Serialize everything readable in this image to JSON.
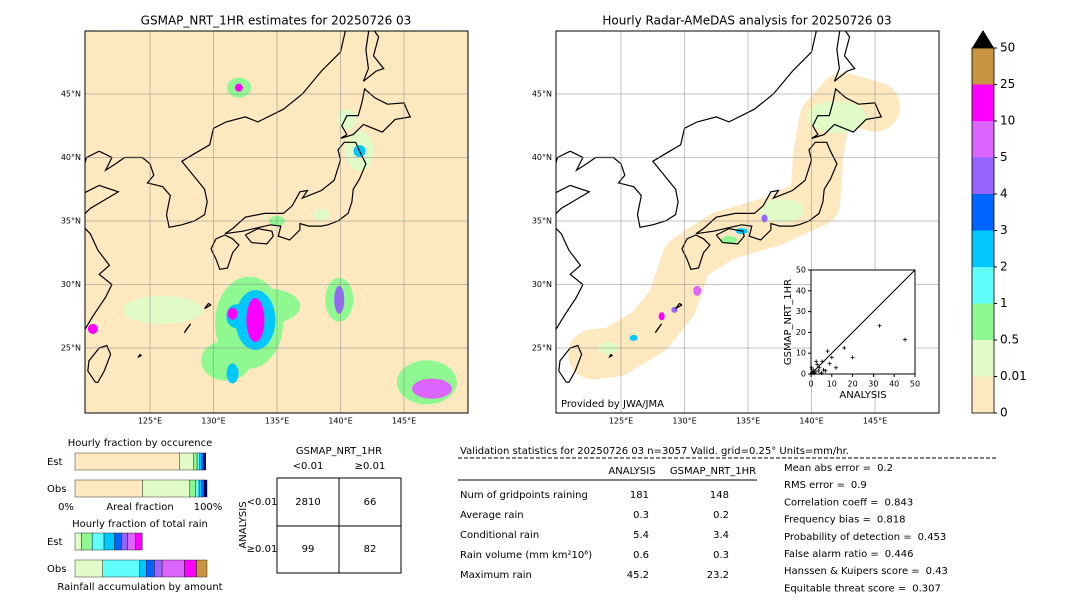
{
  "maps": [
    {
      "title": "GSMAP_NRT_1HR estimates for 20250726 03"
    },
    {
      "title": "Hourly Radar-AMeDAS analysis for 20250726 03",
      "credit": "Provided by JWA/JMA"
    }
  ],
  "lat_labels": [
    "45°N",
    "40°N",
    "35°N",
    "30°N",
    "25°N"
  ],
  "lon_labels": [
    "125°E",
    "130°E",
    "135°E",
    "140°E",
    "145°E"
  ],
  "colorbar": {
    "labels": [
      "0",
      "0.01",
      "0.5",
      "1",
      "2",
      "3",
      "4",
      "5",
      "10",
      "25",
      "50"
    ],
    "colors": [
      "#fde8c0",
      "#e0fbc8",
      "#90f890",
      "#60ffff",
      "#00c8ff",
      "#0064ff",
      "#9664ff",
      "#dc64ff",
      "#ff00ff",
      "#c89640"
    ]
  },
  "scatter": {
    "xlabel": "ANALYSIS",
    "ylabel": "GSMAP_NRT_1HR",
    "lim": [
      0,
      50
    ],
    "ticks": [
      0,
      10,
      20,
      30,
      40,
      50
    ],
    "points": [
      [
        45.2,
        16.5
      ],
      [
        33,
        23.2
      ],
      [
        20,
        8
      ],
      [
        16,
        12.5
      ],
      [
        9,
        5
      ],
      [
        8,
        11
      ],
      [
        10,
        8
      ],
      [
        5.4,
        6
      ],
      [
        4,
        3
      ],
      [
        6,
        2
      ],
      [
        3,
        4.5
      ],
      [
        2,
        1
      ],
      [
        1,
        2
      ],
      [
        0.5,
        0.5
      ],
      [
        7,
        1.5
      ],
      [
        2.5,
        6
      ],
      [
        1.5,
        0.3
      ],
      [
        3.5,
        1.5
      ],
      [
        12,
        3
      ],
      [
        0.3,
        3
      ],
      [
        5,
        0.5
      ],
      [
        1,
        1
      ]
    ]
  },
  "fraction_occurrence": {
    "title": "Hourly fraction by occurence",
    "rows": [
      "Est",
      "Obs"
    ],
    "axis": [
      "0%",
      "Areal fraction",
      "100%"
    ],
    "segments": [
      [
        79,
        11,
        2.5,
        2,
        1.5,
        1.5,
        1.5
      ],
      [
        51,
        36,
        4.5,
        2.5,
        2,
        2,
        2
      ]
    ]
  },
  "fraction_total": {
    "title": "Hourly fraction of total rain",
    "rows": [
      "Est",
      "Obs"
    ],
    "footer": "Rainfall accumulation by amount",
    "segments": [
      [
        0,
        5,
        8,
        9,
        8,
        5,
        5,
        6,
        5,
        0
      ],
      [
        0,
        21,
        0,
        28,
        5,
        6,
        6,
        17,
        9,
        8
      ]
    ]
  },
  "contingency": {
    "title": "GSMAP_NRT_1HR",
    "cols": [
      "<0.01",
      "≥0.01"
    ],
    "side": "ANALYSIS",
    "rows": [
      "<0.01",
      "≥0.01"
    ],
    "cells": [
      [
        2810,
        66
      ],
      [
        99,
        82
      ]
    ]
  },
  "validation": {
    "header": "Validation statistics for 20250726 03  n=3057 Valid. grid=0.25° Units=mm/hr.",
    "cols": [
      "ANALYSIS",
      "GSMAP_NRT_1HR"
    ],
    "rows": [
      {
        "label": "Num of gridpoints raining",
        "values": [
          181,
          148
        ]
      },
      {
        "label": "Average rain",
        "values": [
          0.3,
          0.2
        ]
      },
      {
        "label": "Conditional rain",
        "values": [
          5.4,
          3.4
        ]
      },
      {
        "label": "Rain volume (mm km²10⁶)",
        "values": [
          0.6,
          0.3
        ]
      },
      {
        "label": "Maximum rain",
        "values": [
          45.2,
          23.2
        ]
      }
    ],
    "scores": [
      {
        "label": "Mean abs error =",
        "value": 0.2
      },
      {
        "label": "RMS error =",
        "value": 0.9
      },
      {
        "label": "Correlation coeff =",
        "value": 0.843
      },
      {
        "label": "Frequency bias =",
        "value": 0.818
      },
      {
        "label": "Probability of detection =",
        "value": 0.453
      },
      {
        "label": "False alarm ratio =",
        "value": 0.446
      },
      {
        "label": "Hanssen & Kuipers score =",
        "value": 0.43
      },
      {
        "label": "Equitable threat score =",
        "value": 0.307
      }
    ]
  }
}
